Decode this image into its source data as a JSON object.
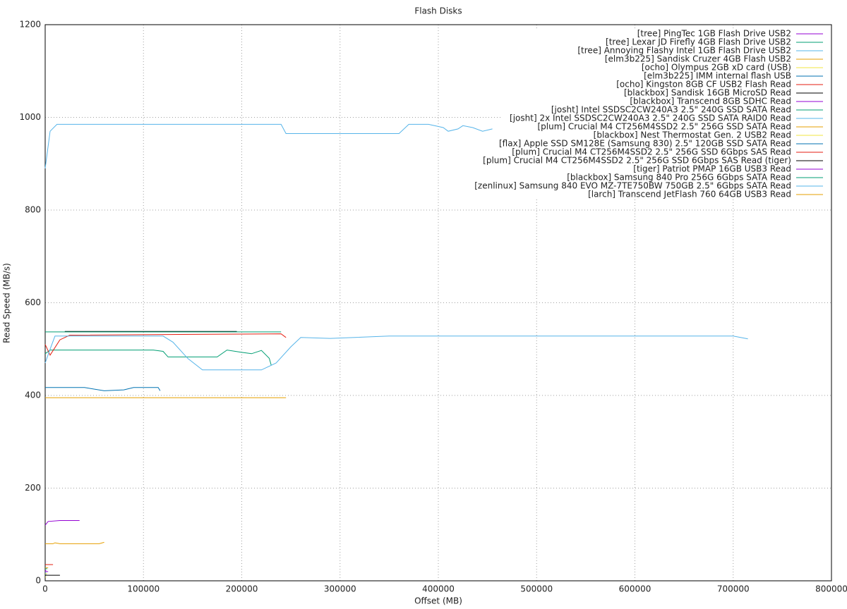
{
  "chart_data": {
    "type": "line",
    "title": "Flash Disks",
    "x_label": "Offset (MB)",
    "y_label": "Read Speed (MB/s)",
    "xlim": [
      0,
      800000
    ],
    "xticks": [
      0,
      100000,
      200000,
      300000,
      400000,
      500000,
      600000,
      700000,
      800000
    ],
    "ylim": [
      0,
      1200
    ],
    "yticks": [
      0,
      200,
      400,
      600,
      800,
      1000,
      1200
    ],
    "grid": true,
    "legend": "top-right",
    "series": [
      {
        "name": "[tree] PingTec 1GB Flash Drive USB2",
        "color": "#9400d3",
        "x": [
          0,
          1000
        ],
        "values": [
          22,
          22
        ]
      },
      {
        "name": "[tree] Lexar JD Firefly 4GB Flash Drive USB2",
        "color": "#009e73",
        "x": [
          0,
          2000
        ],
        "values": [
          26,
          26
        ]
      },
      {
        "name": "[tree] Annoying Flashy Intel 1GB Flash Drive USB2",
        "color": "#56b4e9",
        "x": [
          0,
          1000
        ],
        "values": [
          18,
          18
        ]
      },
      {
        "name": "[elm3b225] Sandisk Cruzer 4GB Flash USB2",
        "color": "#e69f00",
        "x": [
          0,
          3000
        ],
        "values": [
          28,
          28
        ]
      },
      {
        "name": "[ocho] Olympus 2GB xD card (USB)",
        "color": "#f0e442",
        "x": [
          0,
          1000
        ],
        "values": [
          8,
          8
        ]
      },
      {
        "name": "[elm3b225] IMM internal flash USB",
        "color": "#0072b2",
        "x": [
          0,
          1000
        ],
        "values": [
          14,
          14
        ]
      },
      {
        "name": "[ocho] Kingston 8GB CF USB2 Flash Read",
        "color": "#e51e10",
        "x": [
          0,
          8000
        ],
        "values": [
          35,
          35
        ]
      },
      {
        "name": "[blackbox] Sandisk 16GB MicroSD Read",
        "color": "#000000",
        "x": [
          0,
          15000
        ],
        "values": [
          12,
          12
        ]
      },
      {
        "name": "[blackbox] Transcend 8GB SDHC Read",
        "color": "#9400d3",
        "x": [
          0,
          3000
        ],
        "values": [
          20,
          20
        ]
      },
      {
        "name": "[josht] Intel SSDSC2CW240A3 2.5\" 240G SSD SATA Read",
        "color": "#009e73",
        "x": [
          0,
          5000,
          110000,
          120000,
          125000,
          175000,
          185000,
          200000,
          210000,
          220000,
          228000,
          230000
        ],
        "values": [
          490,
          498,
          498,
          495,
          483,
          483,
          498,
          493,
          490,
          497,
          480,
          465
        ]
      },
      {
        "name": "[josht] 2x Intel SSDSC2CW240A3 2.5\" 240G SSD SATA RAID0 Read",
        "color": "#56b4e9",
        "x": [
          0,
          5000,
          12000,
          240000,
          245000,
          360000,
          370000,
          390000,
          405000,
          410000,
          420000,
          425000,
          435000,
          445000,
          455000
        ],
        "values": [
          890,
          970,
          985,
          985,
          965,
          965,
          985,
          985,
          978,
          970,
          975,
          982,
          978,
          970,
          975
        ]
      },
      {
        "name": "[plum] Crucial M4 CT256M4SSD2 2.5\" 256G SSD SATA Read",
        "color": "#e69f00",
        "x": [
          0,
          245000
        ],
        "values": [
          395,
          395
        ]
      },
      {
        "name": "[blackbox] Nest Thermostat Gen. 2 USB2 Read",
        "color": "#f0e442",
        "x": [
          0,
          2000
        ],
        "values": [
          15,
          15
        ]
      },
      {
        "name": "[flax] Apple SSD SM128E (Samsung 830) 2.5\" 120GB SSD SATA Read",
        "color": "#0072b2",
        "x": [
          0,
          40000,
          60000,
          80000,
          90000,
          115000,
          117000
        ],
        "values": [
          417,
          417,
          410,
          412,
          417,
          417,
          410
        ]
      },
      {
        "name": "[plum] Crucial M4 CT256M4SSD2 2.5\" 256G SSD 6Gbps SAS Read",
        "color": "#e51e10",
        "x": [
          0,
          5000,
          15000,
          25000,
          240000,
          245000
        ],
        "values": [
          510,
          487,
          520,
          530,
          533,
          525
        ]
      },
      {
        "name": "[plum] Crucial M4 CT256M4SSD2 2.5\" 256G SSD 6Gbps SAS Read (tiger)",
        "color": "#000000",
        "x": [
          20000,
          195000
        ],
        "values": [
          538,
          538
        ]
      },
      {
        "name": "[tiger] Patriot PMAP 16GB USB3 Read",
        "color": "#9400d3",
        "x": [
          0,
          3000,
          15000,
          35000
        ],
        "values": [
          120,
          128,
          130,
          130
        ]
      },
      {
        "name": "[blackbox] Samsung 840 Pro 256G 6Gbps SATA Read",
        "color": "#009e73",
        "x": [
          0,
          240000
        ],
        "values": [
          537,
          537
        ]
      },
      {
        "name": "[zenlinux] Samsung 840 EVO MZ-7TE750BW 750GB 2.5\" 6Gbps SATA Read",
        "color": "#56b4e9",
        "x": [
          0,
          5000,
          10000,
          120000,
          130000,
          145000,
          160000,
          220000,
          235000,
          250000,
          260000,
          290000,
          350000,
          700000,
          715000
        ],
        "values": [
          470,
          500,
          528,
          528,
          515,
          480,
          455,
          455,
          470,
          505,
          525,
          523,
          528,
          528,
          522
        ]
      },
      {
        "name": "[larch] Transcend JetFlash 760 64GB USB3 Read",
        "color": "#e69f00",
        "x": [
          0,
          8000,
          10000,
          15000,
          55000,
          60000
        ],
        "values": [
          80,
          80,
          82,
          80,
          80,
          83
        ]
      }
    ]
  }
}
